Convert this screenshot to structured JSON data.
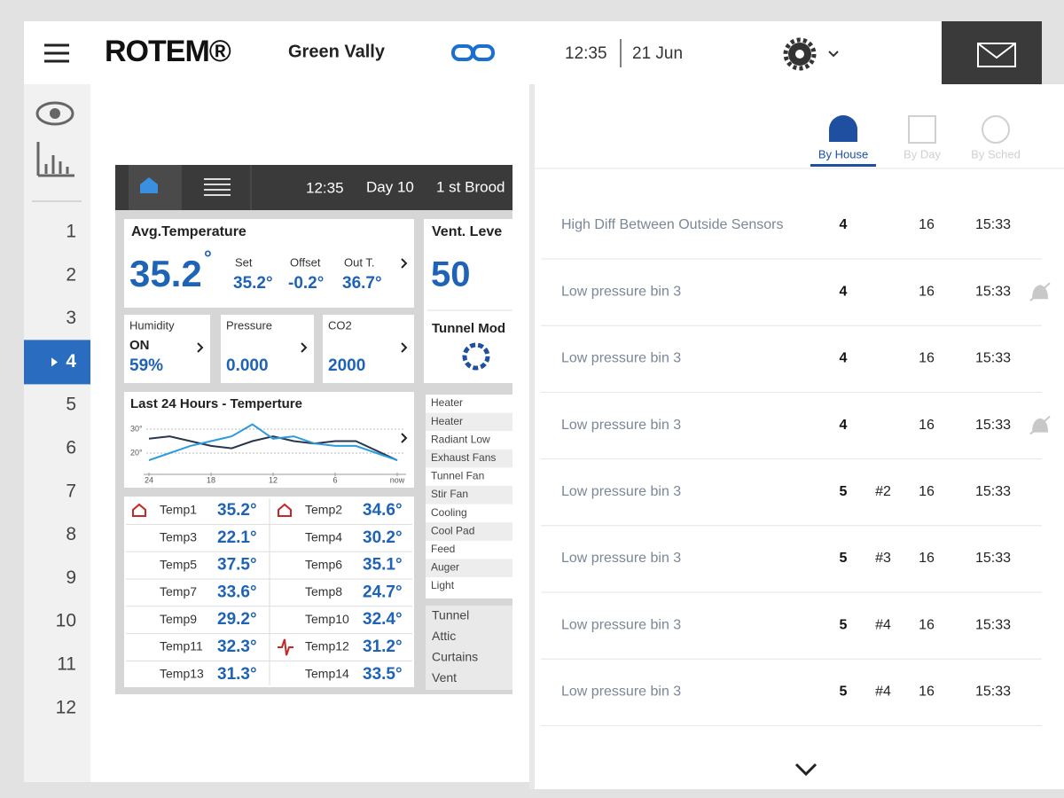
{
  "header": {
    "brand": "ROTEM®",
    "farm": "Green Vally",
    "time": "12:35",
    "date": "21 Jun"
  },
  "sidebar": {
    "houses": [
      "1",
      "2",
      "3",
      "4",
      "5",
      "6",
      "7",
      "8",
      "9",
      "10",
      "11",
      "12"
    ],
    "active": 3
  },
  "dashboard": {
    "topbar": {
      "time": "12:35",
      "day": "Day 10",
      "stage": "1 st Brood"
    },
    "avg_temp": {
      "title": "Avg.Temperature",
      "value": "35.2",
      "unit": "°",
      "set_label": "Set",
      "set": "35.2°",
      "offset_label": "Offset",
      "offset": "-0.2°",
      "out_label": "Out T.",
      "out": "36.7°"
    },
    "vent": {
      "title": "Vent. Leve",
      "value": "50",
      "mode": "Tunnel Mod"
    },
    "humidity": {
      "label": "Humidity",
      "state": "ON",
      "value": "59%"
    },
    "pressure": {
      "label": "Pressure",
      "value": "0.000"
    },
    "co2": {
      "label": "CO2",
      "value": "2000"
    },
    "chart": {
      "type": "line",
      "title": "Last 24 Hours - Temperture",
      "x": [
        24,
        22,
        20,
        18,
        16,
        14,
        12,
        10,
        8,
        6,
        4,
        2,
        0
      ],
      "xlim": [
        24,
        0
      ],
      "xticks": [
        24,
        18,
        12,
        6,
        {
          "value": 0,
          "label": "now"
        }
      ],
      "ylim": [
        10,
        40
      ],
      "yticks": [
        {
          "value": 30,
          "label": "30°"
        },
        {
          "value": 20,
          "label": "20°"
        }
      ],
      "grid": true,
      "series": [
        {
          "color": "#2a3550",
          "values": [
            26,
            27,
            25,
            23,
            22,
            25,
            27,
            25,
            24,
            25,
            25,
            21,
            17
          ]
        },
        {
          "color": "#2b9be0",
          "values": [
            17,
            20,
            23,
            25,
            27,
            32,
            26,
            27,
            24,
            23,
            23,
            20,
            17
          ]
        }
      ]
    },
    "temps": [
      {
        "name": "Temp1",
        "value": "35.2°",
        "icon": "house"
      },
      {
        "name": "Temp2",
        "value": "34.6°",
        "icon": "house"
      },
      {
        "name": "Temp3",
        "value": "22.1°"
      },
      {
        "name": "Temp4",
        "value": "30.2°"
      },
      {
        "name": "Temp5",
        "value": "37.5°"
      },
      {
        "name": "Temp6",
        "value": "35.1°"
      },
      {
        "name": "Temp7",
        "value": "33.6°"
      },
      {
        "name": "Temp8",
        "value": "24.7°"
      },
      {
        "name": "Temp9",
        "value": "29.2°"
      },
      {
        "name": "Temp10",
        "value": "32.4°"
      },
      {
        "name": "Temp11",
        "value": "32.3°"
      },
      {
        "name": "Temp12",
        "value": "31.2°",
        "icon": "sensor"
      },
      {
        "name": "Temp13",
        "value": "31.3°"
      },
      {
        "name": "Temp14",
        "value": "33.5°"
      }
    ],
    "devices": [
      "Heater",
      "Heater",
      "Radiant Low",
      "Exhaust Fans",
      "Tunnel Fan",
      "Stir Fan",
      "Cooling",
      "Cool Pad",
      "Feed",
      "Auger",
      "Light"
    ],
    "inlets": [
      "Tunnel",
      "Attic",
      "Curtains",
      "Vent"
    ]
  },
  "alarms": {
    "tabs": [
      "By House",
      "By Day",
      "By Sched"
    ],
    "active_tab": 0,
    "rows": [
      {
        "message": "High Diff Between Outside Sensors",
        "house": 4,
        "day": 16,
        "time": "15:33"
      },
      {
        "message": "Low pressure bin 3",
        "house": 4,
        "day": 16,
        "time": "15:33",
        "muted": true
      },
      {
        "message": "Low pressure bin 3",
        "house": 4,
        "day": 16,
        "time": "15:33"
      },
      {
        "message": "Low pressure bin 3",
        "house": 4,
        "day": 16,
        "time": "15:33",
        "muted": true
      },
      {
        "message": "Low pressure bin 3",
        "house": 5,
        "bin": "#2",
        "day": 16,
        "time": "15:33"
      },
      {
        "message": "Low pressure bin 3",
        "house": 5,
        "bin": "#3",
        "day": 16,
        "time": "15:33"
      },
      {
        "message": "Low pressure bin 3",
        "house": 5,
        "bin": "#4",
        "day": 16,
        "time": "15:33"
      },
      {
        "message": "Low pressure bin 3",
        "house": 5,
        "bin": "#4",
        "day": 16,
        "time": "15:33"
      }
    ]
  }
}
